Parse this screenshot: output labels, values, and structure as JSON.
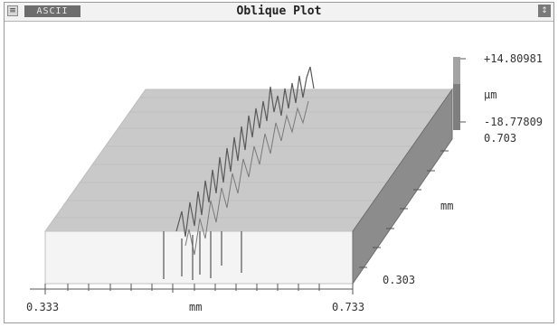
{
  "window": {
    "title": "Oblique Plot",
    "tab_label": "ASCII",
    "system_menu_glyph": "≡",
    "maximize_glyph": "↕"
  },
  "colorbar": {
    "max_label": "+14.80981",
    "unit_label": "µm",
    "min_label": "-18.77809"
  },
  "axes": {
    "x_start": "0.333",
    "x_unit": "mm",
    "x_end": "0.733",
    "y_top": "0.703",
    "y_unit": "mm",
    "y_bottom": "0.303"
  },
  "colors": {
    "surface_fill": "#c9c9c9",
    "surface_front": "#f4f4f4",
    "surface_right": "#8c8c8c",
    "colorbar_top": "#9a9a9a",
    "colorbar_bottom": "#5e5e5e"
  }
}
